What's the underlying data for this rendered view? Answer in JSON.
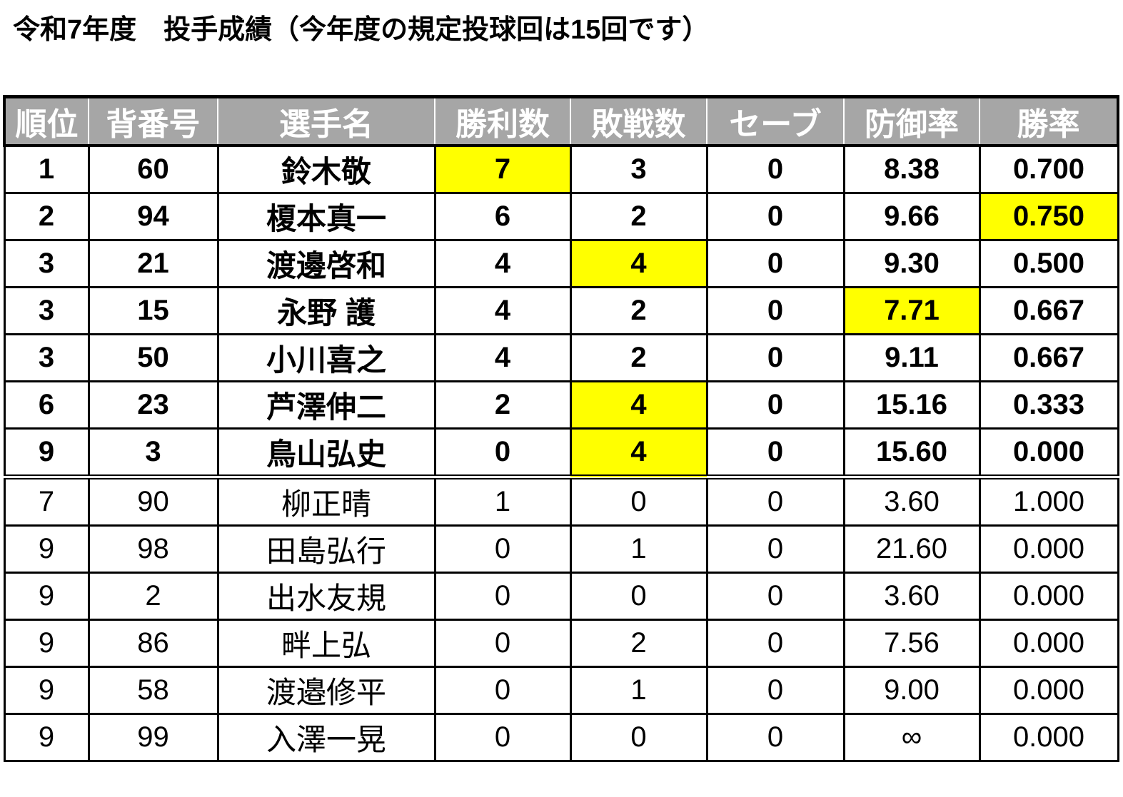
{
  "title": "令和7年度　投手成績（今年度の規定投球回は15回です）",
  "highlight_color": "#ffff00",
  "header_color": "#a6a6a6",
  "columns": [
    "順位",
    "背番号",
    "選手名",
    "勝利数",
    "敗戦数",
    "セーブ",
    "防御率",
    "勝率"
  ],
  "rows": [
    {
      "rank": "1",
      "number": "60",
      "name": "鈴木敬",
      "wins": "7",
      "losses": "3",
      "saves": "0",
      "era": "8.38",
      "pct": "0.700",
      "qualified": true,
      "highlight": [
        "wins"
      ]
    },
    {
      "rank": "2",
      "number": "94",
      "name": "榎本真一",
      "wins": "6",
      "losses": "2",
      "saves": "0",
      "era": "9.66",
      "pct": "0.750",
      "qualified": true,
      "highlight": [
        "pct"
      ]
    },
    {
      "rank": "3",
      "number": "21",
      "name": "渡邊啓和",
      "wins": "4",
      "losses": "4",
      "saves": "0",
      "era": "9.30",
      "pct": "0.500",
      "qualified": true,
      "highlight": [
        "losses"
      ]
    },
    {
      "rank": "3",
      "number": "15",
      "name": "永野 護",
      "wins": "4",
      "losses": "2",
      "saves": "0",
      "era": "7.71",
      "pct": "0.667",
      "qualified": true,
      "highlight": [
        "era"
      ]
    },
    {
      "rank": "3",
      "number": "50",
      "name": "小川喜之",
      "wins": "4",
      "losses": "2",
      "saves": "0",
      "era": "9.11",
      "pct": "0.667",
      "qualified": true,
      "highlight": []
    },
    {
      "rank": "6",
      "number": "23",
      "name": "芦澤伸二",
      "wins": "2",
      "losses": "4",
      "saves": "0",
      "era": "15.16",
      "pct": "0.333",
      "qualified": true,
      "highlight": [
        "losses"
      ]
    },
    {
      "rank": "9",
      "number": "3",
      "name": "鳥山弘史",
      "wins": "0",
      "losses": "4",
      "saves": "0",
      "era": "15.60",
      "pct": "0.000",
      "qualified": true,
      "highlight": [
        "losses"
      ]
    },
    {
      "rank": "7",
      "number": "90",
      "name": "柳正晴",
      "wins": "1",
      "losses": "0",
      "saves": "0",
      "era": "3.60",
      "pct": "1.000",
      "qualified": false,
      "highlight": []
    },
    {
      "rank": "9",
      "number": "98",
      "name": "田島弘行",
      "wins": "0",
      "losses": "1",
      "saves": "0",
      "era": "21.60",
      "pct": "0.000",
      "qualified": false,
      "highlight": []
    },
    {
      "rank": "9",
      "number": "2",
      "name": "出水友規",
      "wins": "0",
      "losses": "0",
      "saves": "0",
      "era": "3.60",
      "pct": "0.000",
      "qualified": false,
      "highlight": []
    },
    {
      "rank": "9",
      "number": "86",
      "name": "畔上弘",
      "wins": "0",
      "losses": "2",
      "saves": "0",
      "era": "7.56",
      "pct": "0.000",
      "qualified": false,
      "highlight": []
    },
    {
      "rank": "9",
      "number": "58",
      "name": "渡邉修平",
      "wins": "0",
      "losses": "1",
      "saves": "0",
      "era": "9.00",
      "pct": "0.000",
      "qualified": false,
      "highlight": []
    },
    {
      "rank": "9",
      "number": "99",
      "name": "入澤一晃",
      "wins": "0",
      "losses": "0",
      "saves": "0",
      "era": "∞",
      "pct": "0.000",
      "qualified": false,
      "highlight": []
    }
  ]
}
